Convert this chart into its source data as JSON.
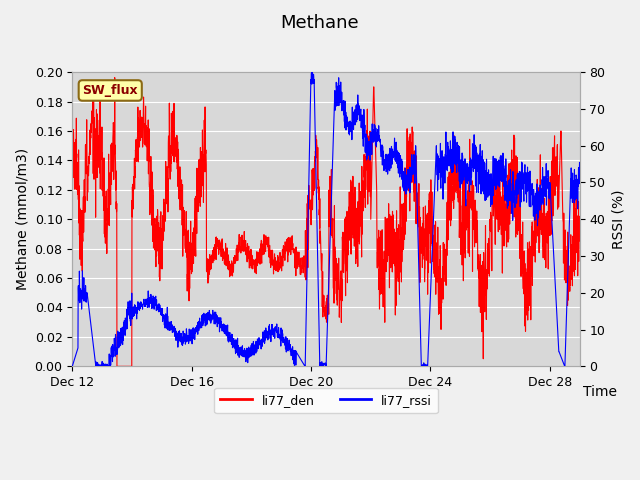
{
  "title": "Methane",
  "ylabel_left": "Methane (mmol/m3)",
  "ylabel_right": "RSSI (%)",
  "xlabel": "Time",
  "ylim_left": [
    0,
    0.2
  ],
  "ylim_right": [
    0,
    80
  ],
  "yticks_left": [
    0.0,
    0.02,
    0.04,
    0.06,
    0.08,
    0.1,
    0.12,
    0.14,
    0.16,
    0.18,
    0.2
  ],
  "yticks_right": [
    0,
    10,
    20,
    30,
    40,
    50,
    60,
    70,
    80
  ],
  "xtick_labels": [
    "Dec 12",
    "Dec 16",
    "Dec 20",
    "Dec 24",
    "Dec 28"
  ],
  "legend_labels": [
    "li77_den",
    "li77_rssi"
  ],
  "legend_colors": [
    "red",
    "blue"
  ],
  "sw_flux_label": "SW_flux",
  "title_fontsize": 13,
  "axis_label_fontsize": 10,
  "tick_fontsize": 9
}
